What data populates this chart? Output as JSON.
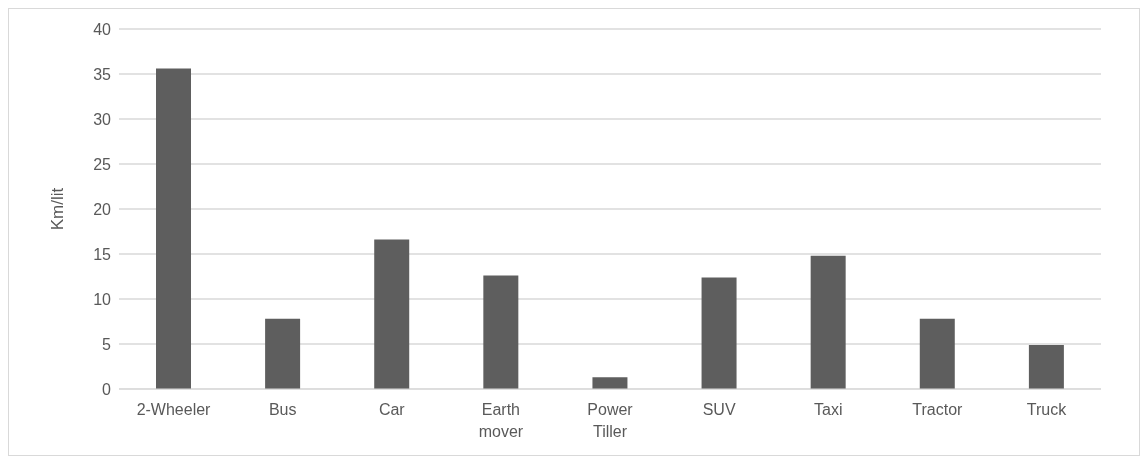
{
  "chart_data": {
    "type": "bar",
    "ylabel": "Km/lit",
    "categories": [
      "2-Wheeler",
      "Bus",
      "Car",
      "Earth mover",
      "Power Tiller",
      "SUV",
      "Taxi",
      "Tractor",
      "Truck"
    ],
    "values": [
      35.6,
      7.8,
      16.6,
      12.6,
      1.3,
      12.4,
      14.8,
      7.8,
      4.9
    ],
    "color": "#5e5e5e",
    "ylim": [
      0,
      40
    ],
    "yticks": [
      0,
      5,
      10,
      15,
      20,
      25,
      30,
      35,
      40
    ],
    "grid": "y"
  }
}
